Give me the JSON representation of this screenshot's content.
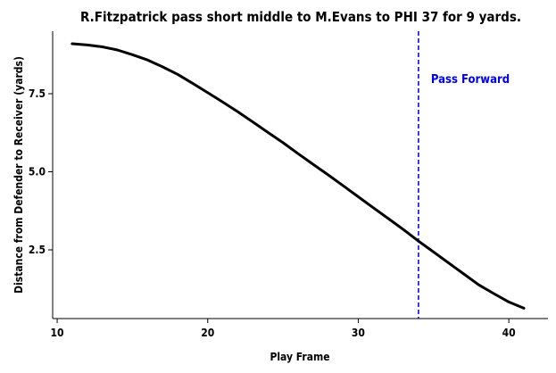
{
  "chart_data": {
    "type": "line",
    "title": "R.Fitzpatrick pass short middle to M.Evans to PHI 37 for 9 yards.",
    "xlabel": "Play Frame",
    "ylabel": "Distance from Defender to Receiver (yards)",
    "xlim": [
      9.7,
      42.6
    ],
    "ylim": [
      0.3,
      9.5
    ],
    "xticks": [
      10,
      20,
      30,
      40
    ],
    "yticks": [
      2.5,
      5.0,
      7.5
    ],
    "ytick_labels": [
      "2.5",
      "5.0",
      "7.5"
    ],
    "grid": false,
    "series": [
      {
        "color": "#000000",
        "x": [
          11,
          12,
          13,
          14,
          15,
          16,
          17,
          18,
          19,
          20,
          21,
          22,
          23,
          24,
          25,
          26,
          27,
          28,
          29,
          30,
          31,
          32,
          33,
          34,
          35,
          36,
          37,
          38,
          39,
          40,
          41
        ],
        "y": [
          9.1,
          9.06,
          9.0,
          8.9,
          8.75,
          8.58,
          8.36,
          8.12,
          7.83,
          7.53,
          7.23,
          6.92,
          6.59,
          6.26,
          5.93,
          5.58,
          5.24,
          4.9,
          4.55,
          4.2,
          3.85,
          3.5,
          3.15,
          2.78,
          2.43,
          2.08,
          1.73,
          1.38,
          1.1,
          0.83,
          0.63
        ]
      }
    ],
    "annotations": [
      {
        "type": "vline",
        "x": 34,
        "color": "#0000ee",
        "style": "dashed",
        "label": "Pass Forward"
      }
    ]
  }
}
